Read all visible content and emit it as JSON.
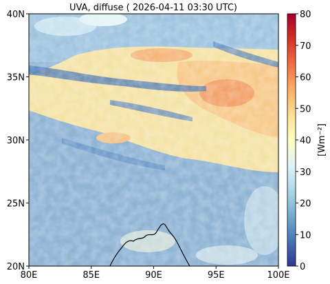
{
  "chart_data": {
    "type": "heatmap",
    "title": "UVA, diffuse ( 2026-04-11 03:30 UTC)",
    "x_ticks": [
      "80E",
      "85E",
      "90E",
      "95E",
      "100E"
    ],
    "x_values": [
      80,
      85,
      90,
      95,
      100
    ],
    "y_ticks": [
      "20N",
      "25N",
      "30N",
      "35N",
      "40N"
    ],
    "y_values": [
      20,
      25,
      30,
      35,
      40
    ],
    "xlim": [
      80,
      100
    ],
    "ylim": [
      20,
      40
    ],
    "colorbar": {
      "label": "[Wm⁻²]",
      "ticks": [
        "0",
        "10",
        "20",
        "30",
        "40",
        "50",
        "60",
        "70",
        "80"
      ],
      "tick_values": [
        0,
        10,
        20,
        30,
        40,
        50,
        60,
        70,
        80
      ],
      "range": [
        0,
        80
      ],
      "colormap": "RdYlBu_r"
    },
    "field_description": "Diffuse UVA irradiance; clear-sky background ~20-25 Wm-2 (south), cloudy band 30-50 Wm-2 around 28-37N, lower values over Tibetan plateau north",
    "coastline": "Bay of Bengal coastline at bottom center (approx 88-93E, 20-23N)"
  },
  "colors": {
    "background_blue": "#8fb4d4",
    "colorbar_stops": [
      "#313695",
      "#4575b4",
      "#74add1",
      "#abd9e9",
      "#e0f3f8",
      "#ffffbf",
      "#fee090",
      "#fdae61",
      "#f46d43",
      "#d73027",
      "#a50026"
    ]
  }
}
